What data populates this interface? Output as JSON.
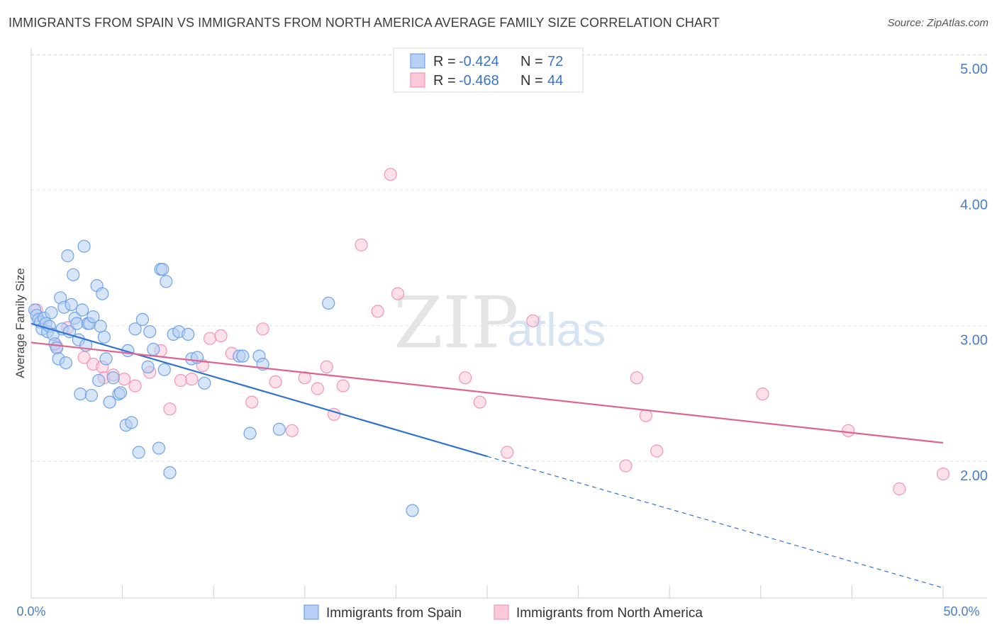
{
  "header": {
    "title": "IMMIGRANTS FROM SPAIN VS IMMIGRANTS FROM NORTH AMERICA AVERAGE FAMILY SIZE CORRELATION CHART",
    "source": "Source: ZipAtlas.com"
  },
  "watermark": {
    "zip": "ZIP",
    "atlas": "atlas"
  },
  "chart_data": {
    "type": "scatter",
    "title": "IMMIGRANTS FROM SPAIN VS IMMIGRANTS FROM NORTH AMERICA AVERAGE FAMILY SIZE CORRELATION CHART",
    "xlabel": "",
    "ylabel": "Average Family Size",
    "xlim": [
      0,
      50
    ],
    "ylim": [
      1.1,
      5.25
    ],
    "x_tick_labels": {
      "left": "0.0%",
      "right": "50.0%"
    },
    "y_ticks": [
      {
        "value": 5.0,
        "label": "5.00"
      },
      {
        "value": 4.0,
        "label": "4.00"
      },
      {
        "value": 3.0,
        "label": "3.00"
      },
      {
        "value": 2.0,
        "label": "2.00"
      }
    ],
    "grid": true,
    "legend_position": "top-center",
    "series": [
      {
        "name": "Immigrants from Spain",
        "color": "#6fa3e8",
        "fill": "#b7d0f3",
        "line_color": "#2f73d0",
        "R_label": "R = ",
        "R": "-0.424",
        "N_label": "N = ",
        "N": "72",
        "trend": {
          "x0": 0,
          "y0": 3.12,
          "x1": 25,
          "y1": 2.14,
          "dash_to_x": 50,
          "dash_to_y": 1.17
        },
        "points": [
          [
            0.2,
            3.22
          ],
          [
            0.3,
            3.18
          ],
          [
            0.4,
            3.15
          ],
          [
            0.5,
            3.13
          ],
          [
            0.6,
            3.08
          ],
          [
            0.7,
            3.16
          ],
          [
            0.8,
            3.12
          ],
          [
            0.9,
            3.06
          ],
          [
            1.0,
            3.1
          ],
          [
            1.1,
            3.2
          ],
          [
            1.2,
            3.04
          ],
          [
            1.3,
            2.97
          ],
          [
            1.4,
            2.94
          ],
          [
            1.5,
            2.86
          ],
          [
            1.6,
            3.31
          ],
          [
            1.7,
            3.08
          ],
          [
            1.8,
            3.24
          ],
          [
            1.9,
            2.83
          ],
          [
            2.0,
            3.62
          ],
          [
            2.1,
            3.06
          ],
          [
            2.2,
            3.26
          ],
          [
            2.3,
            3.48
          ],
          [
            2.4,
            3.16
          ],
          [
            2.5,
            3.12
          ],
          [
            2.6,
            3.0
          ],
          [
            2.7,
            2.6
          ],
          [
            2.8,
            3.22
          ],
          [
            2.9,
            3.69
          ],
          [
            3.0,
            2.96
          ],
          [
            3.1,
            3.12
          ],
          [
            3.2,
            3.12
          ],
          [
            3.3,
            2.59
          ],
          [
            3.4,
            3.17
          ],
          [
            3.6,
            3.4
          ],
          [
            3.7,
            2.7
          ],
          [
            3.8,
            3.1
          ],
          [
            3.9,
            3.34
          ],
          [
            4.0,
            3.02
          ],
          [
            4.1,
            2.86
          ],
          [
            4.3,
            2.54
          ],
          [
            4.5,
            2.72
          ],
          [
            4.8,
            2.6
          ],
          [
            4.9,
            2.61
          ],
          [
            5.2,
            2.37
          ],
          [
            5.3,
            2.92
          ],
          [
            5.5,
            2.39
          ],
          [
            5.7,
            3.08
          ],
          [
            5.9,
            2.17
          ],
          [
            6.1,
            3.15
          ],
          [
            6.4,
            2.8
          ],
          [
            6.5,
            3.06
          ],
          [
            6.7,
            2.93
          ],
          [
            7.0,
            2.2
          ],
          [
            7.1,
            3.52
          ],
          [
            7.2,
            3.52
          ],
          [
            7.3,
            2.78
          ],
          [
            7.4,
            3.43
          ],
          [
            7.6,
            2.02
          ],
          [
            7.8,
            3.04
          ],
          [
            8.1,
            3.06
          ],
          [
            8.6,
            3.04
          ],
          [
            8.8,
            2.86
          ],
          [
            9.1,
            2.87
          ],
          [
            9.5,
            2.68
          ],
          [
            11.4,
            2.88
          ],
          [
            11.6,
            2.88
          ],
          [
            12.0,
            2.31
          ],
          [
            12.5,
            2.88
          ],
          [
            12.7,
            2.82
          ],
          [
            13.6,
            2.34
          ],
          [
            16.3,
            3.27
          ],
          [
            20.9,
            1.74
          ]
        ]
      },
      {
        "name": "Immigrants from North America",
        "color": "#f095b5",
        "fill": "#f9c9da",
        "line_color": "#e0628f",
        "R_label": "R = ",
        "R": "-0.468",
        "N_label": "N = ",
        "N": "44",
        "trend": {
          "x0": 0,
          "y0": 2.98,
          "x1": 50,
          "y1": 2.24
        },
        "points": [
          [
            0.3,
            3.22
          ],
          [
            1.4,
            2.95
          ],
          [
            2.0,
            3.09
          ],
          [
            2.9,
            2.87
          ],
          [
            3.4,
            2.82
          ],
          [
            3.9,
            2.8
          ],
          [
            4.0,
            2.72
          ],
          [
            4.5,
            2.74
          ],
          [
            5.1,
            2.71
          ],
          [
            5.7,
            2.66
          ],
          [
            6.5,
            2.76
          ],
          [
            7.1,
            2.92
          ],
          [
            7.6,
            2.49
          ],
          [
            8.2,
            2.7
          ],
          [
            8.8,
            2.71
          ],
          [
            9.4,
            2.81
          ],
          [
            9.8,
            3.01
          ],
          [
            10.4,
            3.03
          ],
          [
            11.0,
            2.9
          ],
          [
            12.1,
            2.54
          ],
          [
            12.7,
            3.08
          ],
          [
            13.4,
            2.69
          ],
          [
            14.3,
            2.33
          ],
          [
            15.0,
            2.72
          ],
          [
            15.7,
            2.64
          ],
          [
            16.2,
            2.8
          ],
          [
            16.6,
            2.45
          ],
          [
            17.1,
            2.66
          ],
          [
            18.1,
            3.7
          ],
          [
            19.0,
            3.21
          ],
          [
            19.7,
            4.22
          ],
          [
            20.1,
            3.34
          ],
          [
            23.8,
            2.72
          ],
          [
            24.6,
            2.54
          ],
          [
            26.1,
            2.17
          ],
          [
            27.5,
            3.14
          ],
          [
            32.6,
            2.07
          ],
          [
            33.2,
            2.72
          ],
          [
            33.7,
            2.44
          ],
          [
            34.3,
            2.18
          ],
          [
            40.1,
            2.6
          ],
          [
            44.8,
            2.33
          ],
          [
            47.6,
            1.9
          ],
          [
            50.0,
            2.01
          ]
        ]
      }
    ]
  }
}
